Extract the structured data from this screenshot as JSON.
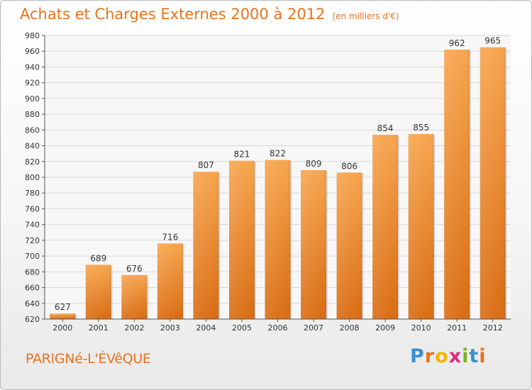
{
  "header": {
    "title": "Achats et Charges Externes 2000 à 2012",
    "unit": "(en milliers d'€)"
  },
  "footer": {
    "place": "PARIGNé-L'ÉVêQUE",
    "logo": [
      "P",
      "r",
      "o",
      "x",
      "i",
      "t",
      "i"
    ]
  },
  "colors": {
    "accent": "#e8731d",
    "bar_top": "#f7a54e",
    "bar_bottom": "#d96c13",
    "logo": [
      "#3b8fd1",
      "#e8731d",
      "#f2b600",
      "#e4287c",
      "#7ab51d",
      "#3b8fd1",
      "#e8731d"
    ]
  },
  "chart_data": {
    "type": "bar",
    "title": "Achats et Charges Externes 2000 à 2012",
    "subtitle": "(en milliers d'€)",
    "categories": [
      "2000",
      "2001",
      "2002",
      "2003",
      "2004",
      "2005",
      "2006",
      "2007",
      "2008",
      "2009",
      "2010",
      "2011",
      "2012"
    ],
    "values": [
      627,
      689,
      676,
      716,
      807,
      821,
      822,
      809,
      806,
      854,
      855,
      962,
      965
    ],
    "ylim": [
      620,
      980
    ],
    "yticks": [
      620,
      640,
      660,
      680,
      700,
      720,
      740,
      760,
      780,
      800,
      820,
      840,
      860,
      880,
      900,
      920,
      940,
      960,
      980
    ],
    "xlabel": "",
    "ylabel": "",
    "grid": true,
    "data_labels": true
  }
}
